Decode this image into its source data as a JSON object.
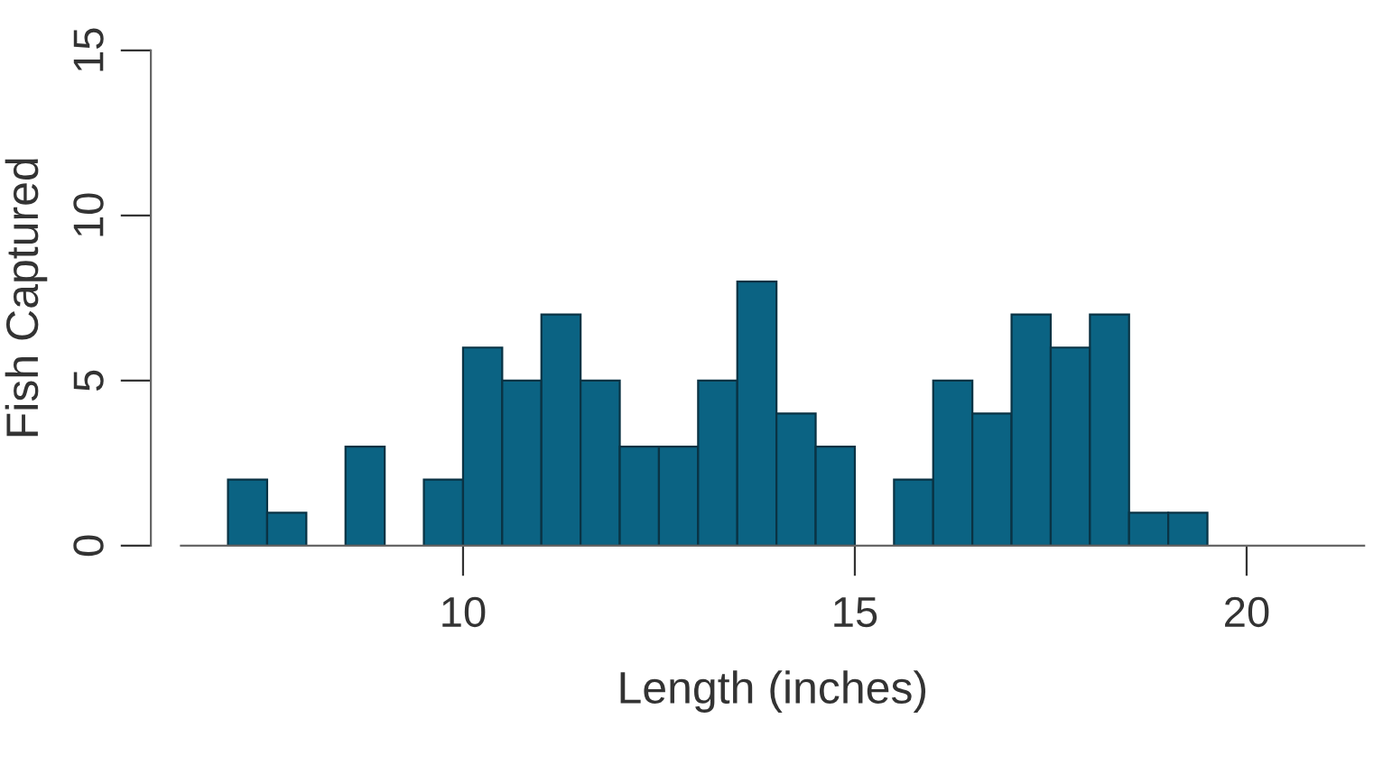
{
  "chart_data": {
    "type": "histogram",
    "xlabel": "Length (inches)",
    "ylabel": "Fish Captured",
    "bins": [
      7,
      7.5,
      8,
      8.5,
      9,
      9.5,
      10,
      10.5,
      11,
      11.5,
      12,
      12.5,
      13,
      13.5,
      14,
      14.5,
      15,
      15.5,
      16,
      16.5,
      17,
      17.5,
      18,
      18.5,
      19,
      19.5
    ],
    "values": [
      2,
      1,
      0,
      3,
      0,
      2,
      6,
      5,
      7,
      5,
      3,
      3,
      5,
      8,
      4,
      3,
      0,
      2,
      5,
      4,
      7,
      6,
      7,
      1,
      1
    ],
    "color": "#0b6383",
    "xlim": [
      6.4,
      21.5
    ],
    "ylim": [
      0,
      15
    ],
    "xticks": [
      10,
      15,
      20
    ],
    "yticks": [
      0,
      5,
      10,
      15
    ],
    "grid": false
  }
}
